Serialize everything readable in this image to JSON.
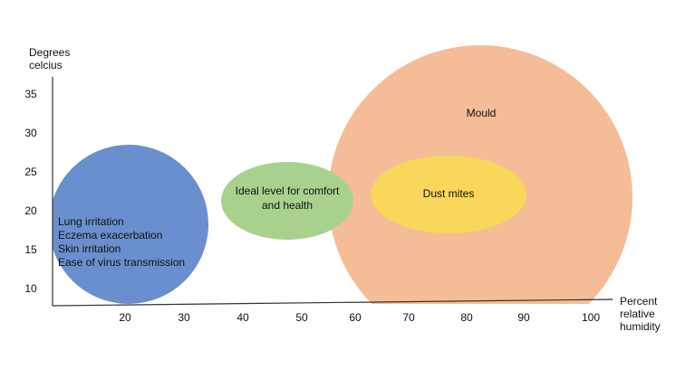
{
  "axes": {
    "y_label": [
      "Degrees",
      "celcius"
    ],
    "x_label": [
      "Percent",
      "relative",
      "humidity"
    ],
    "y_ticks": [
      "35",
      "30",
      "25",
      "20",
      "15",
      "10"
    ],
    "x_ticks": [
      "20",
      "30",
      "40",
      "50",
      "60",
      "70",
      "80",
      "90",
      "100"
    ]
  },
  "regions": [
    {
      "label": [
        "Lung irritation",
        "Eczema exacerbation",
        "Skin irritation",
        "Ease of virus transmission"
      ]
    },
    {
      "label": [
        "Mould"
      ]
    },
    {
      "label": [
        "Ideal level for comfort",
        "and health"
      ]
    },
    {
      "label": [
        "Dust mites"
      ]
    }
  ]
}
